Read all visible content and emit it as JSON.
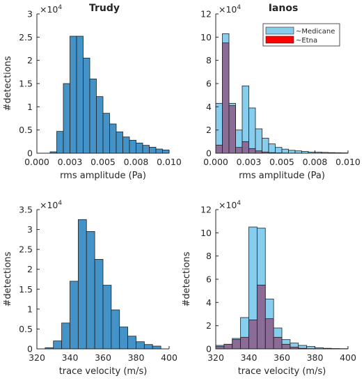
{
  "colors": {
    "trudy_bar": "#4393c8",
    "medicane_bar": "#87cdee",
    "etna_bar": "#8c5a86",
    "etna_legend": "#ff0000",
    "bar_edge": "#1f1f1f",
    "axis": "#262626"
  },
  "chart_data": [
    {
      "type": "bar",
      "title": "Trudy",
      "xlabel": "rms amplitude (Pa)",
      "ylabel": "#detections",
      "exponent_base": "×10",
      "exponent_power": "4",
      "xlim": [
        0,
        0.01
      ],
      "ylim": [
        0,
        3
      ],
      "xticks": [
        0,
        0.0025,
        0.005,
        0.0075,
        0.01
      ],
      "xtick_labels": [
        "0.000",
        "0.003",
        "0.005",
        "0.008",
        "0.010"
      ],
      "yticks": [
        0,
        0.5,
        1,
        1.5,
        2,
        2.5,
        3
      ],
      "ytick_labels": [
        "0",
        "0.5",
        "1",
        "1.5",
        "2",
        "2.5",
        "3"
      ],
      "bin_edges": [
        0.001,
        0.0015,
        0.002,
        0.0025,
        0.003,
        0.0035,
        0.004,
        0.0045,
        0.005,
        0.0055,
        0.006,
        0.0065,
        0.007,
        0.0075,
        0.008,
        0.0085,
        0.009,
        0.0095,
        0.01
      ],
      "series": [
        {
          "values": [
            0.03,
            0.47,
            1.5,
            2.52,
            2.52,
            2.05,
            1.6,
            1.22,
            0.86,
            0.63,
            0.46,
            0.35,
            0.28,
            0.22,
            0.17,
            0.13,
            0.09,
            0.07
          ],
          "color_key": "trudy_bar"
        }
      ]
    },
    {
      "type": "bar",
      "title": "Ianos",
      "xlabel": "rms amplitude (Pa)",
      "ylabel": "",
      "exponent_base": "×10",
      "exponent_power": "4",
      "xlim": [
        0,
        0.01
      ],
      "ylim": [
        0,
        12
      ],
      "xticks": [
        0,
        0.0025,
        0.005,
        0.0075,
        0.01
      ],
      "xtick_labels": [
        "0.000",
        "0.003",
        "0.005",
        "0.008",
        "0.010"
      ],
      "yticks": [
        0,
        2,
        4,
        6,
        8,
        10,
        12
      ],
      "ytick_labels": [
        "0",
        "2",
        "4",
        "6",
        "8",
        "10",
        "12"
      ],
      "legend": {
        "placement": "top-right",
        "entries": [
          "~Medicane",
          "~Etna"
        ]
      },
      "bin_edges": [
        0,
        0.0005,
        0.001,
        0.0015,
        0.002,
        0.0025,
        0.003,
        0.0035,
        0.004,
        0.0045,
        0.005,
        0.0055,
        0.006,
        0.0065,
        0.007,
        0.0075,
        0.008,
        0.0085,
        0.009,
        0.0095,
        0.01
      ],
      "series": [
        {
          "name": "~Medicane",
          "values": [
            4.3,
            10.3,
            4.3,
            2.0,
            5.8,
            3.9,
            2.1,
            1.3,
            0.8,
            0.5,
            0.35,
            0.25,
            0.2,
            0.15,
            0.1,
            0.1,
            0.07,
            0.05,
            0.04,
            0.03
          ],
          "color_key": "medicane_bar"
        },
        {
          "name": "~Etna",
          "values": [
            0.7,
            9.5,
            4.1,
            0.5,
            1.0,
            0.4,
            0.2,
            0.1,
            0.05,
            0.03,
            0.02,
            0.01,
            0.01,
            0,
            0,
            0,
            0,
            0,
            0,
            0
          ],
          "color_key": "etna_bar"
        }
      ]
    },
    {
      "type": "bar",
      "title": "",
      "xlabel": "trace velocity (m/s)",
      "ylabel": "#detections",
      "exponent_base": "×10",
      "exponent_power": "4",
      "xlim": [
        320,
        400
      ],
      "ylim": [
        0,
        3.5
      ],
      "xticks": [
        320,
        340,
        360,
        380,
        400
      ],
      "xtick_labels": [
        "320",
        "340",
        "360",
        "380",
        "400"
      ],
      "yticks": [
        0,
        0.5,
        1,
        1.5,
        2,
        2.5,
        3,
        3.5
      ],
      "ytick_labels": [
        "0",
        "0.5",
        "1",
        "1.5",
        "2",
        "2.5",
        "3",
        "3.5"
      ],
      "bin_edges": [
        325,
        330,
        335,
        340,
        345,
        350,
        355,
        360,
        365,
        370,
        375,
        380,
        385,
        390,
        395
      ],
      "series": [
        {
          "values": [
            0.03,
            0.2,
            0.65,
            1.7,
            3.25,
            2.95,
            2.25,
            1.6,
            0.98,
            0.55,
            0.32,
            0.18,
            0.11,
            0.07
          ],
          "color_key": "trudy_bar"
        }
      ]
    },
    {
      "type": "bar",
      "title": "",
      "xlabel": "trace velocity (m/s)",
      "ylabel": "#detections",
      "exponent_base": "×10",
      "exponent_power": "4",
      "xlim": [
        320,
        400
      ],
      "ylim": [
        0,
        12
      ],
      "xticks": [
        320,
        340,
        360,
        380,
        400
      ],
      "xtick_labels": [
        "320",
        "340",
        "360",
        "380",
        "400"
      ],
      "yticks": [
        0,
        2,
        4,
        6,
        8,
        10,
        12
      ],
      "ytick_labels": [
        "0",
        "2",
        "4",
        "6",
        "8",
        "10",
        "12"
      ],
      "bin_edges": [
        320,
        325,
        330,
        335,
        340,
        345,
        350,
        355,
        360,
        365,
        370,
        375,
        380,
        385,
        390,
        395,
        400
      ],
      "series": [
        {
          "name": "~Medicane",
          "values": [
            0.3,
            0.4,
            0.9,
            2.7,
            10.5,
            10.4,
            4.3,
            1.8,
            0.8,
            0.5,
            0.3,
            0.2,
            0.1,
            0.05,
            0.03,
            0.02
          ],
          "color_key": "medicane_bar"
        },
        {
          "name": "~Etna",
          "values": [
            0.2,
            0.4,
            0.8,
            1.0,
            2.5,
            5.5,
            2.6,
            1.0,
            0.4,
            0.15,
            0.05,
            0.02,
            0.01,
            0,
            0,
            0
          ],
          "color_key": "etna_bar"
        }
      ]
    }
  ]
}
